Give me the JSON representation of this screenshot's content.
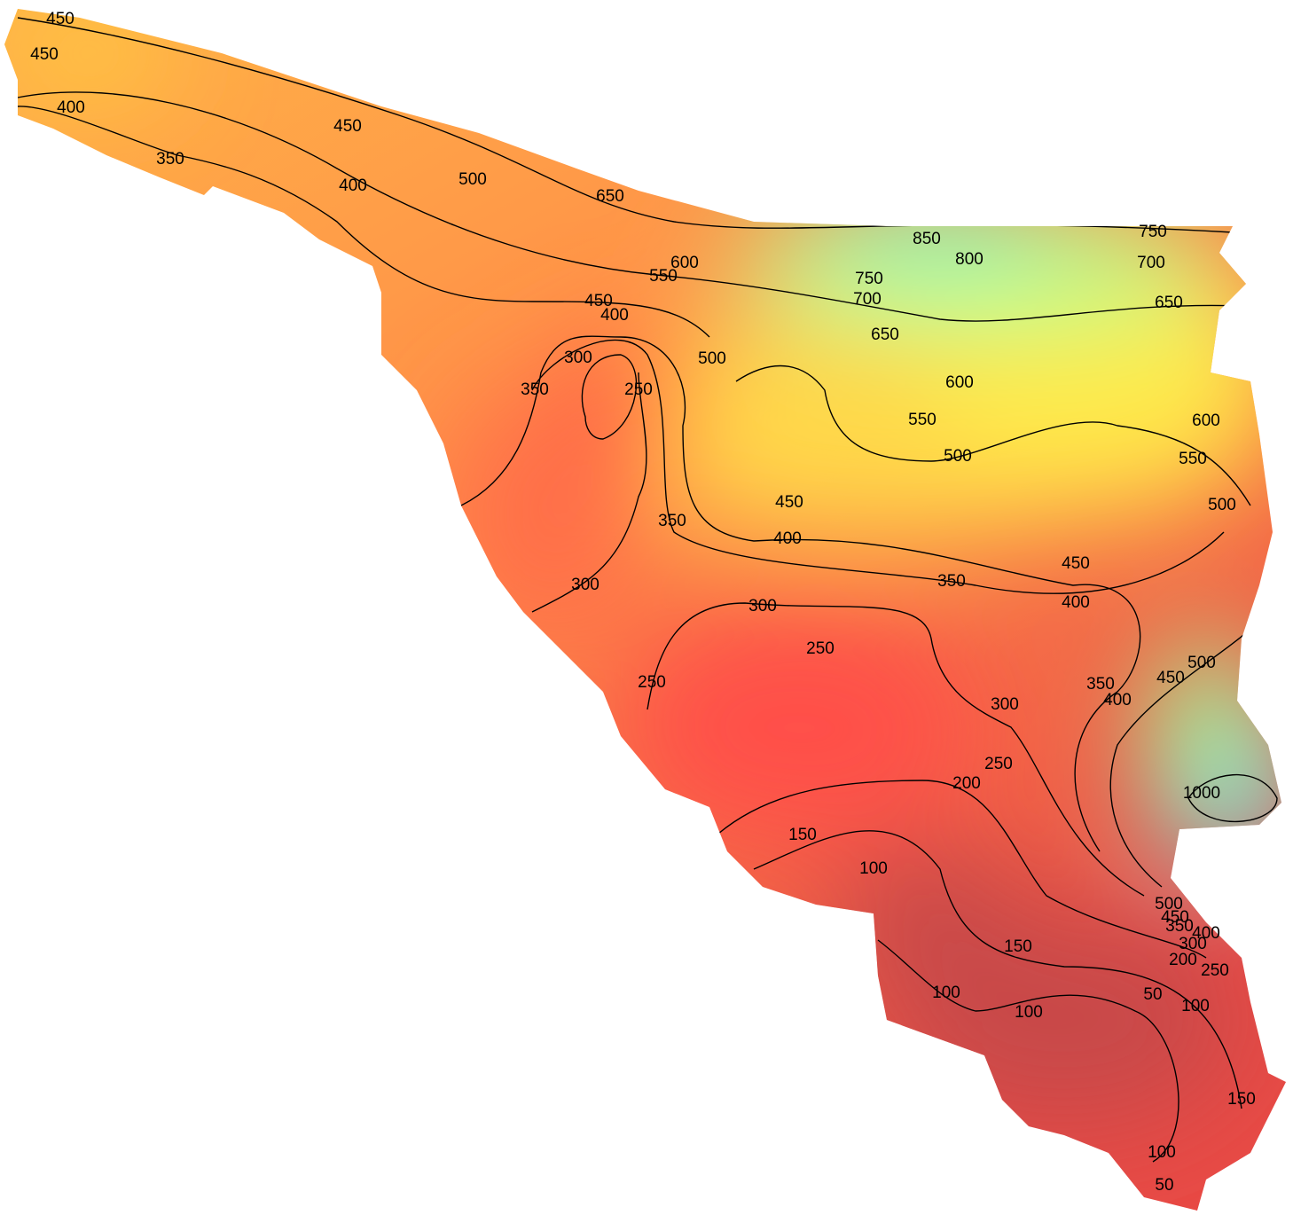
{
  "map": {
    "contour_labels": [
      450,
      450,
      400,
      350,
      450,
      400,
      500,
      650,
      850,
      800,
      750,
      700,
      750,
      700,
      650,
      650,
      600,
      550,
      450,
      400,
      500,
      300,
      250,
      350,
      600,
      550,
      600,
      550,
      500,
      500,
      450,
      400,
      350,
      450,
      400,
      350,
      300,
      300,
      250,
      250,
      350,
      400,
      450,
      500,
      300,
      250,
      200,
      1000,
      150,
      100,
      150,
      100,
      100,
      50,
      100,
      150,
      100,
      50,
      500,
      450,
      400,
      350,
      300,
      200,
      250
    ]
  }
}
